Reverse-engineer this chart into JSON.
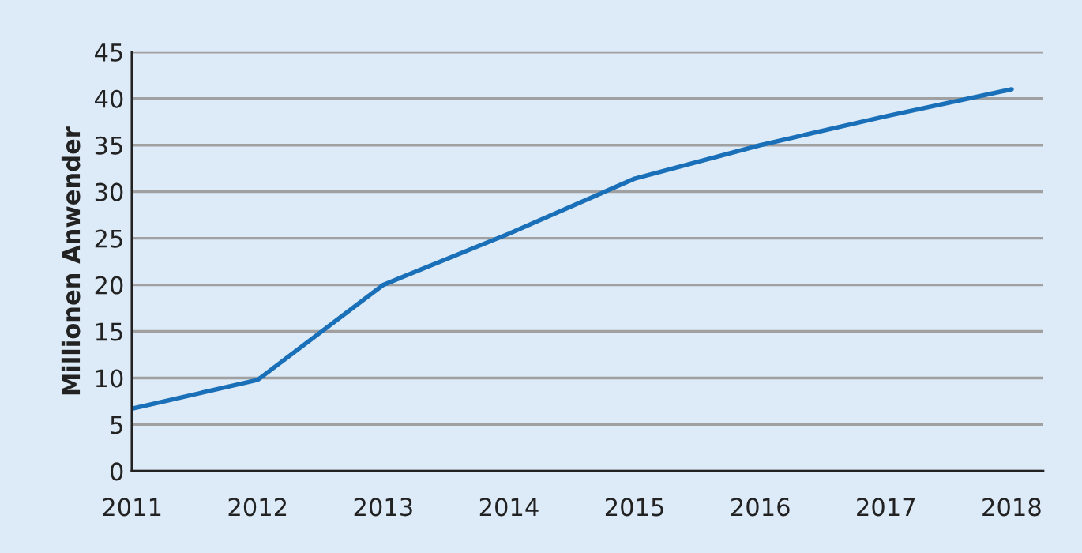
{
  "chart_data": {
    "type": "line",
    "ylabel": "Millionen Anwender",
    "x": [
      2011,
      2012,
      2013,
      2014,
      2015,
      2016,
      2017,
      2018
    ],
    "series": [
      {
        "color": "#1a70b8",
        "values": [
          6.7,
          9.8,
          20.0,
          25.5,
          31.4,
          35.0,
          38.1,
          41.0
        ]
      }
    ],
    "xlim": [
      2011,
      2018.25
    ],
    "xticks": [
      2011,
      2012,
      2013,
      2014,
      2015,
      2016,
      2017,
      2018
    ],
    "ylim": [
      0,
      45
    ],
    "yticks": [
      0,
      5,
      10,
      15,
      20,
      25,
      30,
      35,
      40,
      45
    ],
    "grid": "y",
    "marker": "none",
    "line_style": "solid"
  }
}
